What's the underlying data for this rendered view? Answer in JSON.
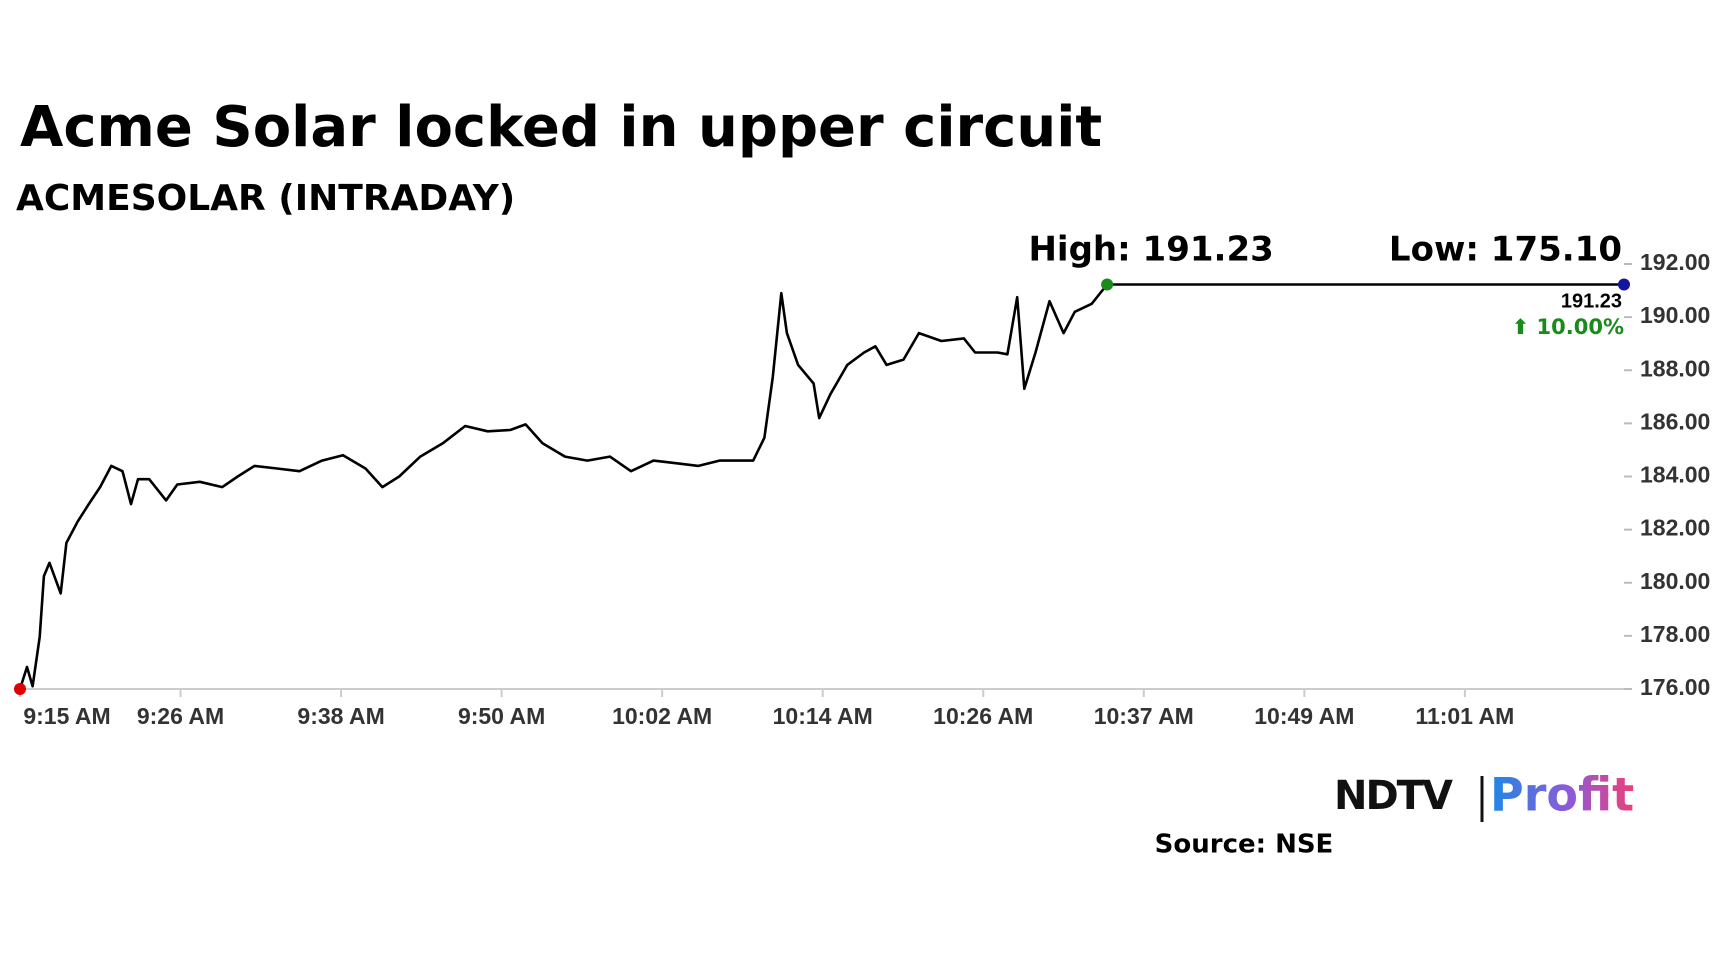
{
  "chart_data": {
    "type": "line",
    "title": "Acme Solar locked in upper circuit",
    "subtitle": "ACMESOLAR (INTRADAY)",
    "x": [
      0,
      0.5,
      0.9,
      1.4,
      1.7,
      2.1,
      2.9,
      3.3,
      4.1,
      4.9,
      5.7,
      6.5,
      7.3,
      7.9,
      8.4,
      9.2,
      10.4,
      11.2,
      12.8,
      14.4,
      15.5,
      16.7,
      18.3,
      19.9,
      21.5,
      23.0,
      24.6,
      25.8,
      27.0,
      28.5,
      30.1,
      31.7,
      33.3,
      34.9,
      36.0,
      37.2,
      38.8,
      40.4,
      42.0,
      43.5,
      45.1,
      46.7,
      48.3,
      49.8,
      52.2,
      53.0,
      53.6,
      54.2,
      54.6,
      55.4,
      56.5,
      56.9,
      57.7,
      58.9,
      60.1,
      60.9,
      61.7,
      62.9,
      64.0,
      65.6,
      67.2,
      68.0,
      69.6,
      70.3,
      71.0,
      71.5,
      72.3,
      73.3,
      74.3,
      75.1,
      76.3,
      77.4
    ],
    "series": [
      {
        "name": "ACMESOLAR",
        "color": "#000000",
        "values": [
          176.0,
          176.83,
          176.1,
          177.96,
          180.25,
          180.75,
          179.6,
          181.5,
          182.3,
          182.96,
          183.6,
          184.4,
          184.2,
          182.96,
          183.9,
          183.9,
          183.1,
          183.7,
          183.8,
          183.6,
          184.0,
          184.4,
          184.3,
          184.2,
          184.6,
          184.8,
          184.3,
          183.6,
          184.0,
          184.75,
          185.25,
          185.9,
          185.7,
          185.75,
          185.96,
          185.25,
          184.75,
          184.6,
          184.75,
          184.2,
          184.6,
          184.5,
          184.4,
          184.6,
          184.6,
          185.46,
          187.75,
          190.9,
          189.4,
          188.2,
          187.5,
          186.2,
          187.1,
          188.2,
          188.67,
          188.9,
          188.2,
          188.4,
          189.4,
          189.1,
          189.2,
          188.67,
          188.67,
          188.6,
          190.75,
          187.3,
          188.67,
          190.6,
          189.4,
          190.2,
          190.5,
          191.23
        ]
      }
    ],
    "xlim": [
      0,
      114.2
    ],
    "xticks": [
      {
        "value": 0,
        "label": "9:15 AM"
      },
      {
        "value": 11.43,
        "label": "9:26 AM"
      },
      {
        "value": 22.86,
        "label": "9:38 AM"
      },
      {
        "value": 34.29,
        "label": "9:50 AM"
      },
      {
        "value": 45.72,
        "label": "10:02 AM"
      },
      {
        "value": 57.15,
        "label": "10:14 AM"
      },
      {
        "value": 68.58,
        "label": "10:26 AM"
      },
      {
        "value": 80.01,
        "label": "10:37 AM"
      },
      {
        "value": 91.44,
        "label": "10:49 AM"
      },
      {
        "value": 102.87,
        "label": "11:01 AM"
      }
    ],
    "ylim": [
      176,
      192
    ],
    "yticks": [
      {
        "value": 176,
        "label": "176.00"
      },
      {
        "value": 178,
        "label": "178.00"
      },
      {
        "value": 180,
        "label": "180.00"
      },
      {
        "value": 182,
        "label": "182.00"
      },
      {
        "value": 184,
        "label": "184.00"
      },
      {
        "value": 186,
        "label": "186.00"
      },
      {
        "value": 188,
        "label": "188.00"
      },
      {
        "value": 190,
        "label": "190.00"
      },
      {
        "value": 192,
        "label": "192.00"
      }
    ],
    "high": {
      "value": 191.23,
      "label": "High: 191.23"
    },
    "low": {
      "value": 175.1,
      "label": "Low: 175.10"
    },
    "last": {
      "value": 191.23,
      "label": "191.23"
    },
    "change": "⬆ 10.00%",
    "start_color": "#e00000",
    "high_color": "#1a8a1a",
    "end_color": "#1515a0",
    "logo": {
      "left": "NDTV",
      "right": "Profit"
    },
    "source": "Source: NSE"
  }
}
